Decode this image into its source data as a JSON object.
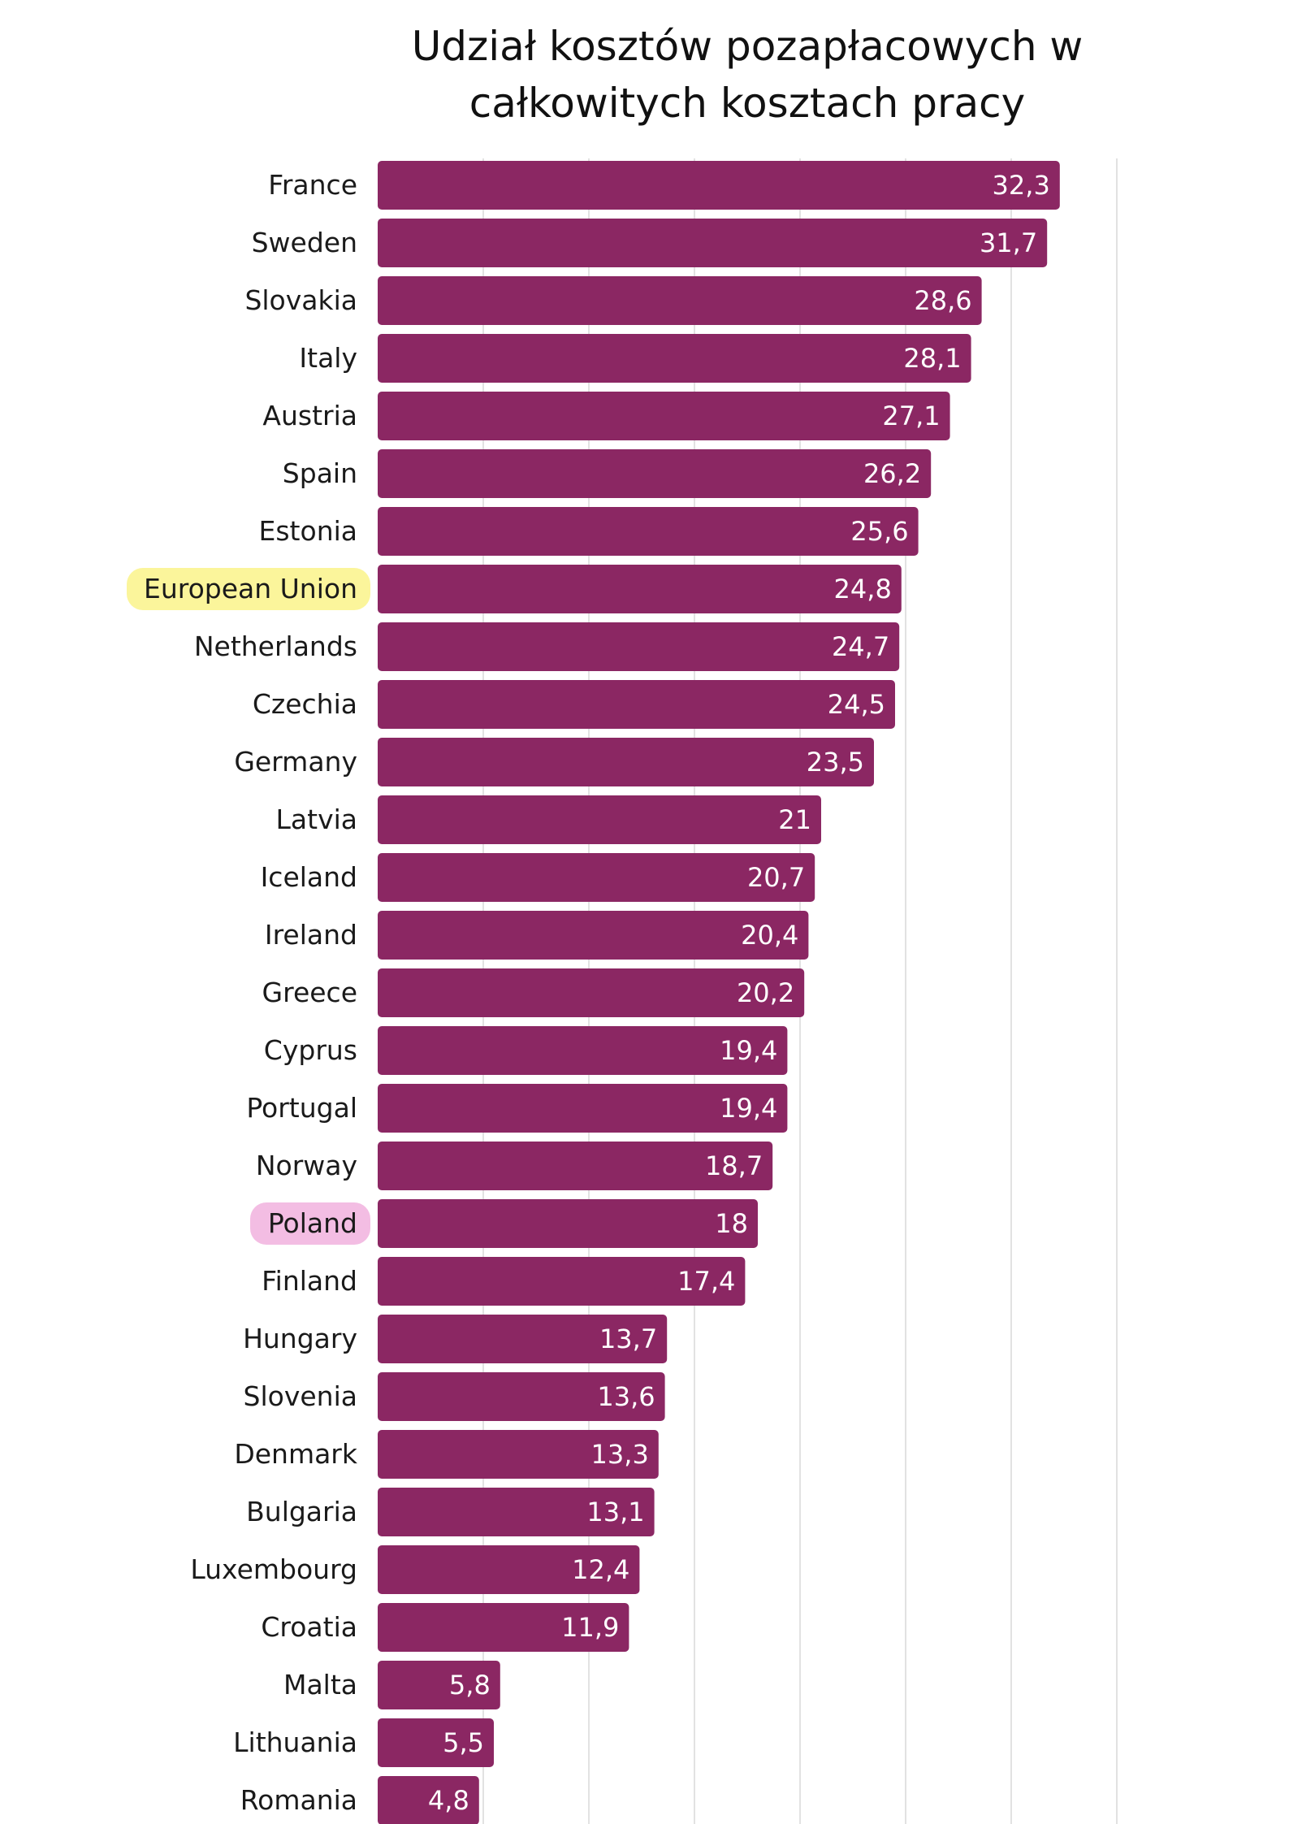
{
  "chart_data": {
    "type": "bar",
    "orientation": "horizontal",
    "title_lines": [
      "Udział kosztów pozapłacowych w",
      "całkowitych kosztach pracy"
    ],
    "categories": [
      "France",
      "Sweden",
      "Slovakia",
      "Italy",
      "Austria",
      "Spain",
      "Estonia",
      "European Union",
      "Netherlands",
      "Czechia",
      "Germany",
      "Latvia",
      "Iceland",
      "Ireland",
      "Greece",
      "Cyprus",
      "Portugal",
      "Norway",
      "Poland",
      "Finland",
      "Hungary",
      "Slovenia",
      "Denmark",
      "Bulgaria",
      "Luxembourg",
      "Croatia",
      "Malta",
      "Lithuania",
      "Romania"
    ],
    "values": [
      32.3,
      31.7,
      28.6,
      28.1,
      27.1,
      26.2,
      25.6,
      24.8,
      24.7,
      24.5,
      23.5,
      21,
      20.7,
      20.4,
      20.2,
      19.4,
      19.4,
      18.7,
      18,
      17.4,
      13.7,
      13.6,
      13.3,
      13.1,
      12.4,
      11.9,
      5.8,
      5.5,
      4.8
    ],
    "value_labels": [
      "32,3",
      "31,7",
      "28,6",
      "28,1",
      "27,1",
      "26,2",
      "25,6",
      "24,8",
      "24,7",
      "24,5",
      "23,5",
      "21",
      "20,7",
      "20,4",
      "20,2",
      "19,4",
      "19,4",
      "18,7",
      "18",
      "17,4",
      "13,7",
      "13,6",
      "13,3",
      "13,1",
      "12,4",
      "11,9",
      "5,8",
      "5,5",
      "4,8"
    ],
    "xlim": [
      0,
      35
    ],
    "grid_step": 5,
    "grid": true,
    "xlabel": "",
    "ylabel": "",
    "highlights": [
      {
        "category": "European Union",
        "color": "#fbf59b"
      },
      {
        "category": "Poland",
        "color": "#f3bde3"
      }
    ]
  },
  "colors": {
    "bar": "#8b2763",
    "value_text": "#ffffff",
    "label_text": "#1a1a1a",
    "grid": "#d9d9d9",
    "background": "#ffffff"
  }
}
